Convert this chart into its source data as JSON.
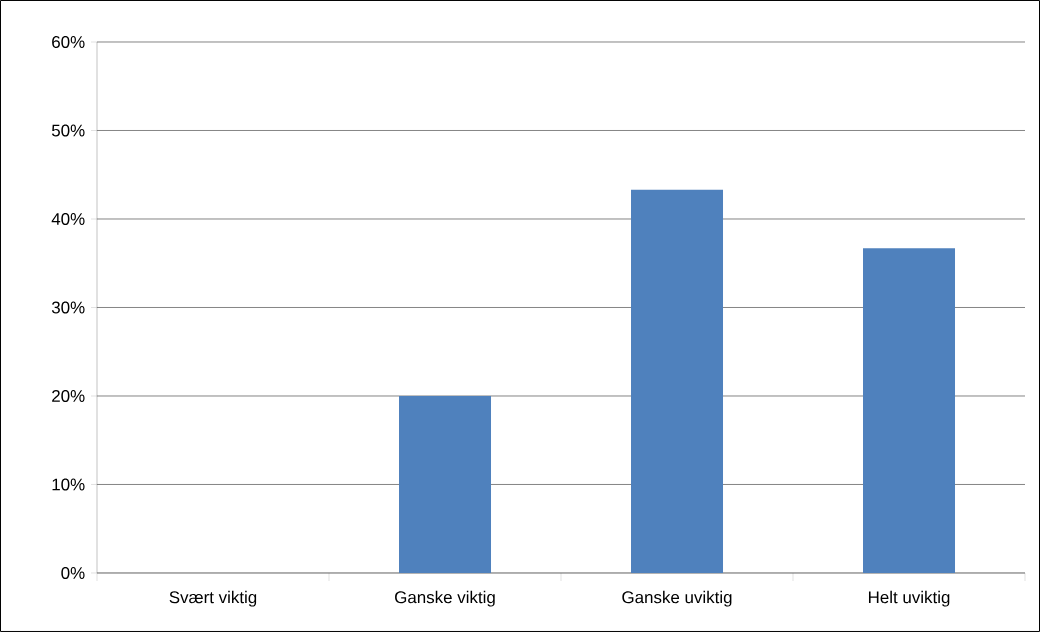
{
  "chart_data": {
    "type": "bar",
    "categories": [
      "Svært viktig",
      "Ganske viktig",
      "Ganske uviktig",
      "Helt uviktig"
    ],
    "values": [
      0,
      20,
      43.3,
      36.7
    ],
    "color": "#4f81bd",
    "ylim": [
      0,
      60
    ],
    "yticks": [
      {
        "value": 0,
        "label": "0%"
      },
      {
        "value": 10,
        "label": "10%"
      },
      {
        "value": 20,
        "label": "20%"
      },
      {
        "value": 30,
        "label": "30%"
      },
      {
        "value": 40,
        "label": "40%"
      },
      {
        "value": 50,
        "label": "50%"
      },
      {
        "value": 60,
        "label": "60%"
      }
    ],
    "grid": "y"
  }
}
